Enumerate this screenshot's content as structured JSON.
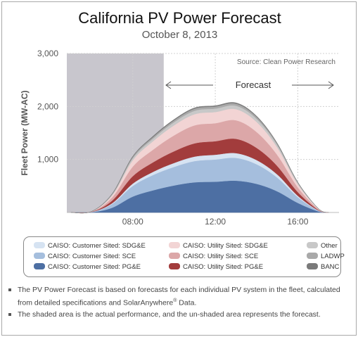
{
  "title": "California PV Power Forecast",
  "subtitle": "October 8, 2013",
  "source": "Source: Clean Power Research",
  "forecast_label": "Forecast",
  "notes": [
    {
      "text": "The PV Power Forecast is based on forecasts for each individual PV system in the fleet, calculated from detailed specifications and SolarAnywhere",
      "sup": "®",
      "tail": " Data."
    },
    {
      "text": "The shaded area is the actual performance, and the  un-shaded area represents the forecast.",
      "sup": "",
      "tail": ""
    }
  ],
  "chart_data": {
    "type": "area",
    "stacked": true,
    "title": "California PV Power Forecast",
    "subtitle": "October 8, 2013",
    "ylabel": "Fleet Power (MW-AC)",
    "xlabel": "",
    "x_ticks": [
      "08:00",
      "12:00",
      "16:00"
    ],
    "y_ticks": [
      "3,000",
      "2,000",
      "1,000"
    ],
    "ylim": [
      0,
      3000
    ],
    "x": [
      "05:00",
      "06:00",
      "07:00",
      "08:00",
      "09:00",
      "10:00",
      "11:00",
      "12:00",
      "13:00",
      "14:00",
      "15:00",
      "16:00",
      "17:00",
      "17:30"
    ],
    "actual_shaded_until": "09:30",
    "grid": true,
    "legend_position": "bottom",
    "series": [
      {
        "name": "CAISO: Customer Sited: PG&E",
        "color": "#4d6fa3",
        "values": [
          0,
          5,
          90,
          300,
          420,
          510,
          570,
          580,
          600,
          540,
          400,
          180,
          20,
          0
        ]
      },
      {
        "name": "CAISO: Customer Sited: SCE",
        "color": "#a5bedd",
        "values": [
          0,
          4,
          70,
          200,
          290,
          350,
          400,
          420,
          430,
          370,
          260,
          110,
          15,
          0
        ]
      },
      {
        "name": "CAISO: Customer Sited: SDG&E",
        "color": "#d6e3f2",
        "values": [
          0,
          1,
          15,
          45,
          60,
          75,
          85,
          90,
          90,
          80,
          60,
          25,
          3,
          0
        ]
      },
      {
        "name": "CAISO: Utility Sited: PG&E",
        "color": "#a23c3c",
        "values": [
          0,
          3,
          50,
          140,
          180,
          220,
          250,
          255,
          270,
          230,
          160,
          70,
          10,
          0
        ]
      },
      {
        "name": "CAISO: Utility Sited: SCE",
        "color": "#dca7a8",
        "values": [
          0,
          3,
          60,
          180,
          240,
          300,
          340,
          340,
          350,
          300,
          210,
          90,
          12,
          0
        ]
      },
      {
        "name": "CAISO: Utility Sited: SDG&E",
        "color": "#f2d4d4",
        "values": [
          0,
          2,
          40,
          120,
          160,
          190,
          210,
          210,
          210,
          190,
          140,
          60,
          8,
          0
        ]
      },
      {
        "name": "Other",
        "color": "#c8c8c8",
        "values": [
          0,
          1,
          15,
          40,
          50,
          60,
          65,
          65,
          65,
          60,
          45,
          20,
          3,
          0
        ]
      },
      {
        "name": "LADWP",
        "color": "#a9a9a9",
        "values": [
          0,
          1,
          10,
          25,
          30,
          35,
          40,
          40,
          40,
          35,
          25,
          12,
          2,
          0
        ]
      },
      {
        "name": "BANC",
        "color": "#7a7a7a",
        "values": [
          0,
          0,
          5,
          10,
          15,
          15,
          15,
          15,
          15,
          15,
          10,
          5,
          1,
          0
        ]
      }
    ]
  },
  "legend": [
    {
      "label": "CAISO: Customer Sited: SDG&E",
      "color": "#d6e3f2"
    },
    {
      "label": "CAISO: Customer Sited: SCE",
      "color": "#a5bedd"
    },
    {
      "label": "CAISO: Customer Sited: PG&E",
      "color": "#4d6fa3"
    },
    {
      "label": "CAISO: Utility Sited: SDG&E",
      "color": "#f2d4d4"
    },
    {
      "label": "CAISO: Utility Sited: SCE",
      "color": "#dca7a8"
    },
    {
      "label": "CAISO: Utility Sited: PG&E",
      "color": "#a23c3c"
    },
    {
      "label": "Other",
      "color": "#c8c8c8"
    },
    {
      "label": "LADWP",
      "color": "#a9a9a9"
    },
    {
      "label": "BANC",
      "color": "#7a7a7a"
    }
  ]
}
